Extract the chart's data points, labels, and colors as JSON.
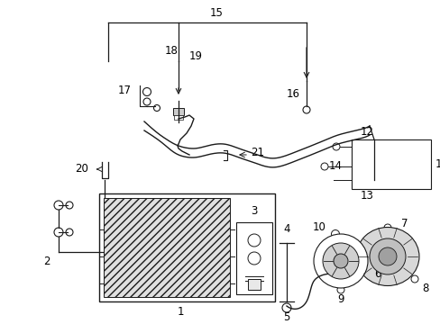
{
  "background_color": "#ffffff",
  "line_color": "#1a1a1a",
  "text_color": "#000000",
  "label_fontsize": 8.5,
  "fig_w": 4.89,
  "fig_h": 3.6,
  "dpi": 100
}
